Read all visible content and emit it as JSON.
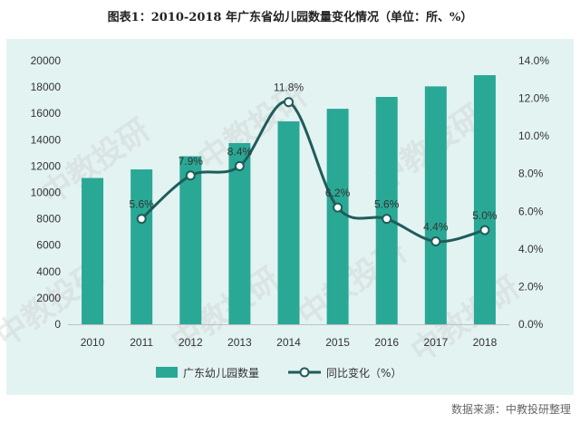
{
  "page": {
    "title": "图表1：2010-2018 年广东省幼儿园数量变化情况（单位：所、%）",
    "source": "数据来源：中教投研整理",
    "watermark": "中教投研"
  },
  "colors": {
    "bar": "#2aa896",
    "line": "#1f5c5a",
    "marker_fill": "#ffffff",
    "panel": "#e3f3f2"
  },
  "chart_data": {
    "type": "bar",
    "categories": [
      "2010",
      "2011",
      "2012",
      "2013",
      "2014",
      "2015",
      "2016",
      "2017",
      "2018"
    ],
    "series": [
      {
        "name": "广东幼儿园数量",
        "type": "bar",
        "axis": "left",
        "values": [
          11100,
          11750,
          12750,
          13750,
          15400,
          16350,
          17250,
          18050,
          18900
        ]
      },
      {
        "name": "同比变化（%）",
        "type": "line",
        "axis": "right",
        "values": [
          null,
          5.6,
          7.9,
          8.4,
          11.8,
          6.2,
          5.6,
          4.4,
          5.0
        ],
        "labels": [
          "",
          "5.6%",
          "7.9%",
          "8.4%",
          "11.8%",
          "6.2%",
          "5.6%",
          "4.4%",
          "5.0%"
        ]
      }
    ],
    "y_left": {
      "min": 0,
      "max": 20000,
      "ticks": [
        "0",
        "2000",
        "4000",
        "6000",
        "8000",
        "10000",
        "12000",
        "14000",
        "16000",
        "18000",
        "20000"
      ]
    },
    "y_right": {
      "min": 0,
      "max": 14,
      "ticks": [
        "0.0%",
        "2.0%",
        "4.0%",
        "6.0%",
        "8.0%",
        "10.0%",
        "12.0%",
        "14.0%"
      ]
    },
    "grid": false,
    "legend_position": "bottom"
  }
}
